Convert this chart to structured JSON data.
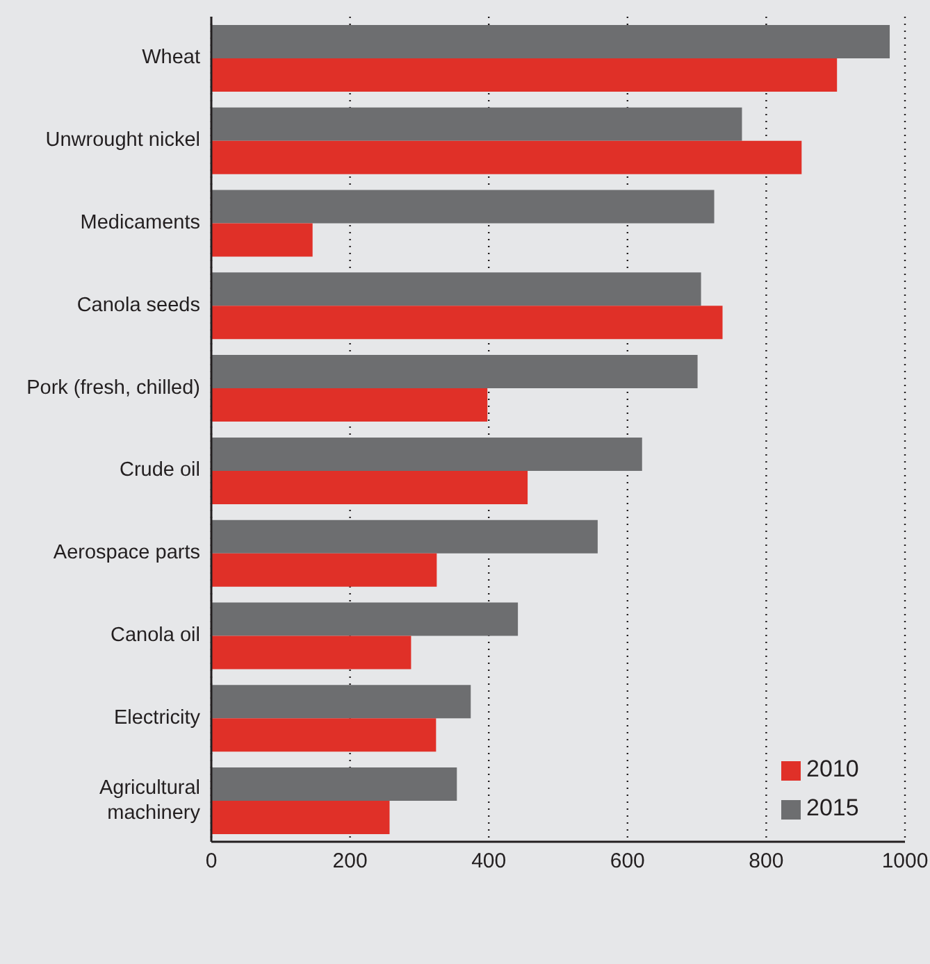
{
  "chart_data": {
    "type": "bar",
    "orientation": "horizontal",
    "categories": [
      "Wheat",
      "Unwrought nickel",
      "Medicaments",
      "Canola seeds",
      "Pork (fresh, chilled)",
      "Crude oil",
      "Aerospace parts",
      "Canola oil",
      "Electricity",
      "Agricultural machinery"
    ],
    "series": [
      {
        "name": "2015",
        "color": "#6d6e70",
        "values": [
          978,
          765,
          725,
          706,
          701,
          621,
          557,
          442,
          374,
          354
        ]
      },
      {
        "name": "2010",
        "color": "#e03028",
        "values": [
          902,
          851,
          146,
          737,
          398,
          456,
          325,
          288,
          324,
          257
        ]
      }
    ],
    "xlim": [
      0,
      1000
    ],
    "xticks": [
      0,
      200,
      400,
      600,
      800,
      1000
    ],
    "grid": "x",
    "legend": "bottom right"
  }
}
